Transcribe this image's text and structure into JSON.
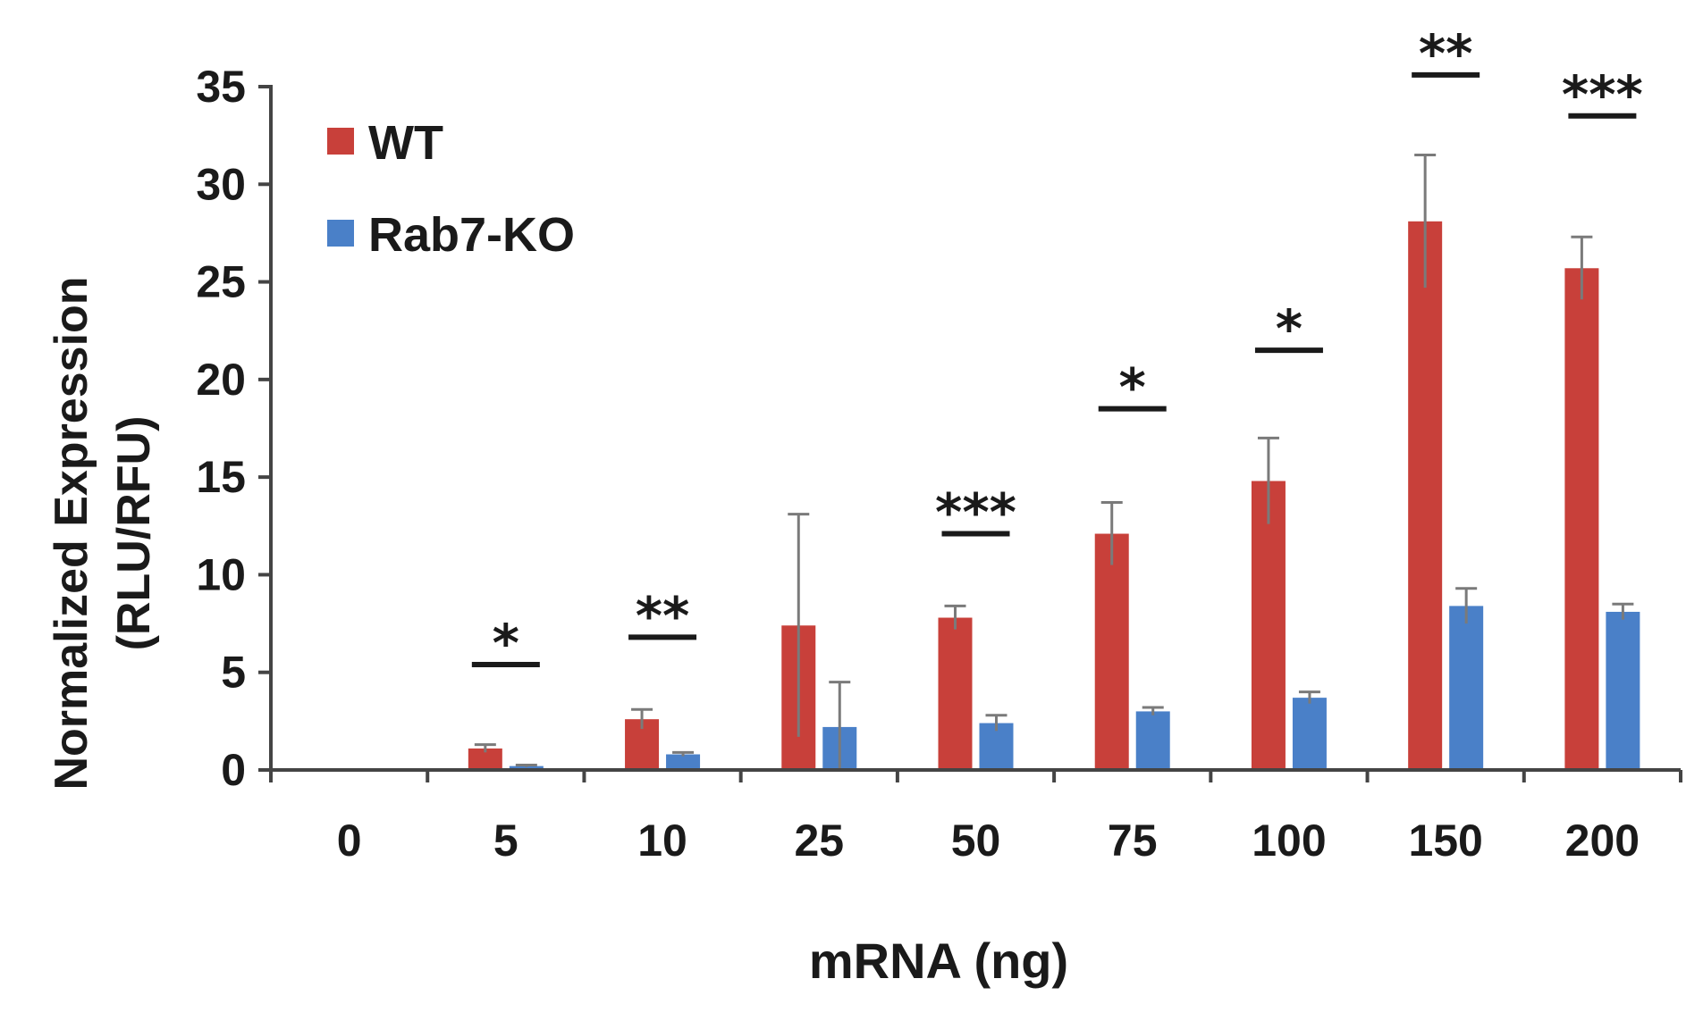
{
  "chart_data": {
    "type": "bar",
    "title": "",
    "xlabel": "mRNA (ng)",
    "ylabel_line1": "Normalized Expression",
    "ylabel_line2": "(RLU/RFU)",
    "ylim": [
      0,
      35
    ],
    "yticks": [
      0,
      5,
      10,
      15,
      20,
      25,
      30,
      35
    ],
    "categories": [
      "0",
      "5",
      "10",
      "25",
      "50",
      "75",
      "100",
      "150",
      "200"
    ],
    "series": [
      {
        "name": "WT",
        "color": "#c8403a",
        "values": [
          0,
          1.1,
          2.6,
          7.4,
          7.8,
          12.1,
          14.8,
          28.1,
          25.7
        ],
        "errors": [
          0,
          0.2,
          0.5,
          5.7,
          0.6,
          1.6,
          2.2,
          3.4,
          1.6
        ]
      },
      {
        "name": "Rab7-KO",
        "color": "#4a80c8",
        "values": [
          0,
          0.2,
          0.8,
          2.2,
          2.4,
          3.0,
          3.7,
          8.4,
          8.1
        ],
        "errors": [
          0,
          0.05,
          0.1,
          2.3,
          0.4,
          0.2,
          0.3,
          0.9,
          0.4
        ]
      }
    ],
    "significance": [
      {
        "category": "5",
        "label": "*",
        "bar_y": 5.4
      },
      {
        "category": "10",
        "label": "**",
        "bar_y": 6.8
      },
      {
        "category": "50",
        "label": "***",
        "bar_y": 12.1
      },
      {
        "category": "75",
        "label": "*",
        "bar_y": 18.5
      },
      {
        "category": "100",
        "label": "*",
        "bar_y": 21.5
      },
      {
        "category": "150",
        "label": "**",
        "bar_y": 35.6
      },
      {
        "category": "200",
        "label": "***",
        "bar_y": 33.5
      }
    ],
    "legend": "top-left"
  }
}
